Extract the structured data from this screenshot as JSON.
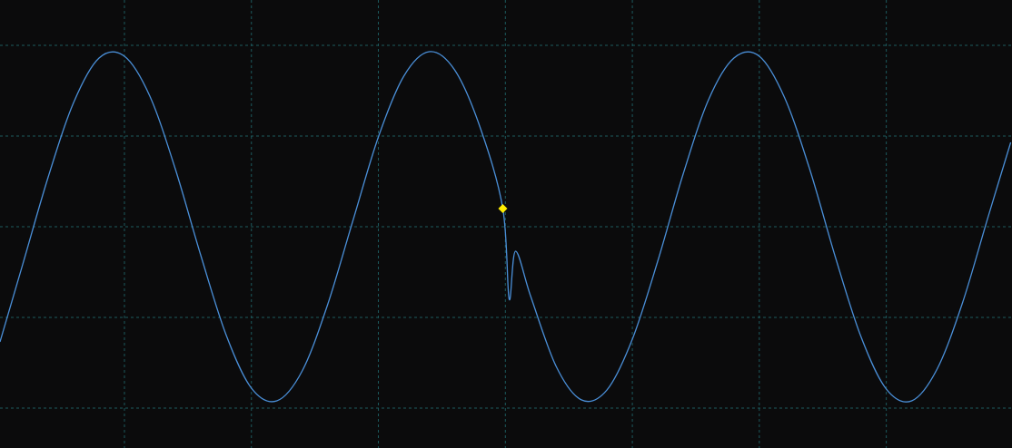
{
  "chart_data": {
    "type": "line",
    "x": [
      0.02,
      0.2,
      0.4,
      0.6,
      0.8,
      1.0,
      1.2,
      1.4,
      1.6,
      1.8,
      2.0,
      2.2,
      2.4,
      2.6,
      2.8,
      3.0,
      3.2,
      3.4,
      3.6,
      3.8,
      3.98,
      4.03,
      4.08,
      4.2,
      4.4,
      4.6,
      4.8,
      5.0,
      5.2,
      5.4,
      5.6,
      5.8,
      6.0,
      6.2,
      6.4,
      6.6,
      6.8,
      7.0,
      7.2,
      7.4,
      7.6,
      7.8,
      7.98
    ],
    "series": [
      {
        "color": "#4a8fd8",
        "values": [
          -1.27,
          -0.41,
          0.55,
          1.37,
          1.86,
          1.88,
          1.44,
          0.64,
          -0.31,
          -1.19,
          -1.78,
          -1.92,
          -1.59,
          -0.86,
          0.07,
          0.99,
          1.66,
          1.93,
          1.73,
          1.1,
          0.2,
          -0.8,
          -0.27,
          -0.77,
          -1.54,
          -1.91,
          -1.8,
          -1.24,
          -0.38,
          0.58,
          1.4,
          1.86,
          1.88,
          1.42,
          0.62,
          -0.34,
          -1.21,
          -1.79,
          -1.92,
          -1.57,
          -0.84,
          0.1,
          0.93
        ]
      }
    ],
    "trigger": {
      "x": 3.98,
      "y": 0.2,
      "color": "#ffee00"
    },
    "xlim": [
      0.02,
      7.99
    ],
    "xticks": [
      1,
      2,
      3,
      4,
      5,
      6,
      7
    ],
    "ylim": [
      -2.44,
      2.5
    ],
    "yticks": [
      -2,
      -1,
      0,
      1,
      2
    ],
    "grid": true
  }
}
